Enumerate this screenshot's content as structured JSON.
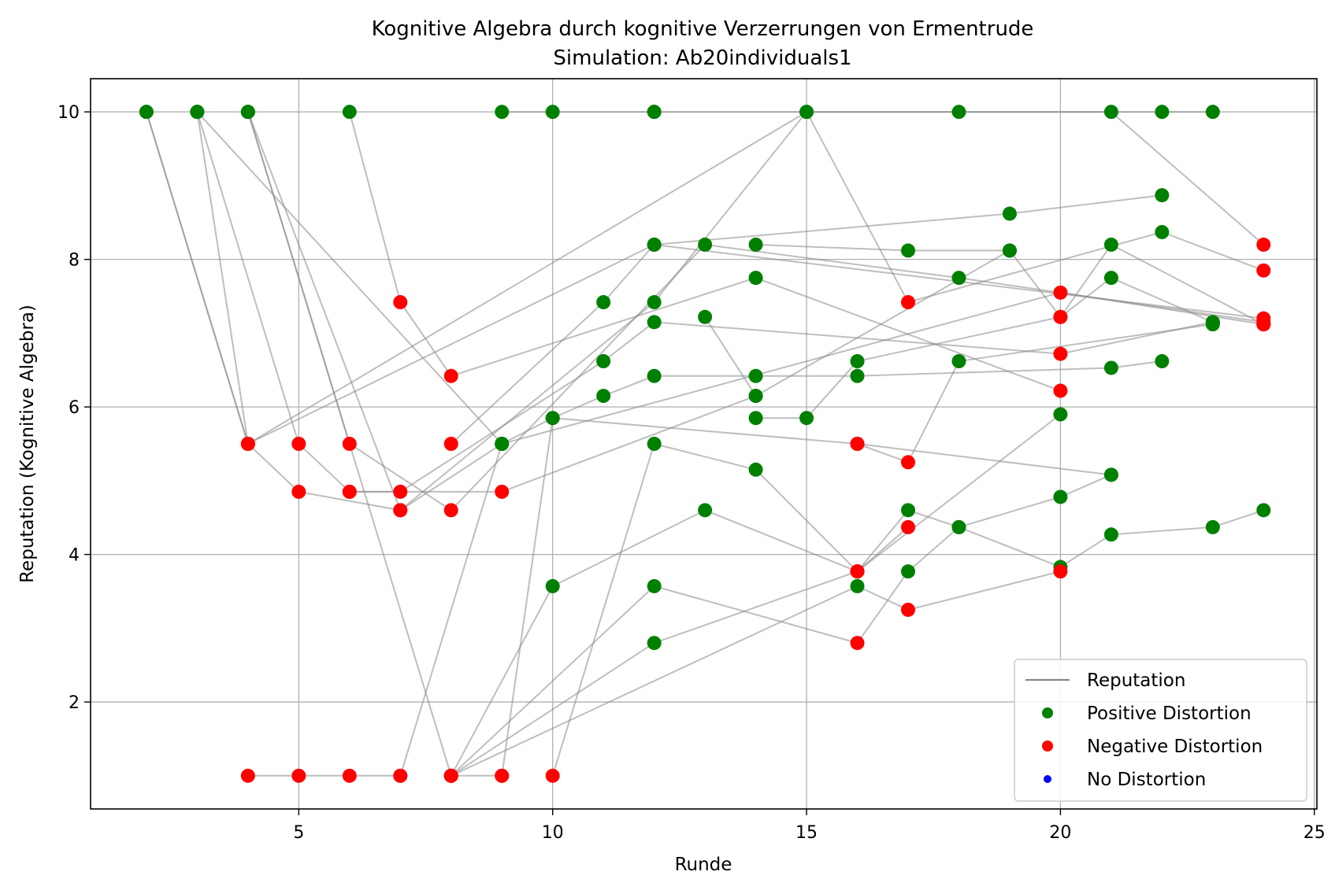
{
  "chart_data": {
    "type": "scatter",
    "title": "Kognitive Algebra durch kognitive Verzerrungen von Ermentrude",
    "subtitle": "Simulation: Ab20individuals1",
    "xlabel": "Runde",
    "ylabel": "Reputation (Kognitive Algebra)",
    "xlim": [
      0.9,
      25.05
    ],
    "ylim": [
      0.55,
      10.45
    ],
    "xticks": [
      5,
      10,
      15,
      20,
      25
    ],
    "yticks": [
      2,
      4,
      6,
      8,
      10
    ],
    "grid": true,
    "legend_position": "lower-right",
    "colors": {
      "positive": "#008000",
      "negative": "#ff0000",
      "none": "#0000ff",
      "line": "#888888",
      "grid": "#b0b0b0"
    },
    "legend": [
      {
        "label": "Reputation",
        "kind": "line"
      },
      {
        "label": "Positive Distortion",
        "kind": "positive"
      },
      {
        "label": "Negative Distortion",
        "kind": "negative"
      },
      {
        "label": "No Distortion",
        "kind": "none"
      }
    ],
    "series": [
      {
        "points": [
          [
            2,
            10
          ],
          [
            4,
            5.5
          ],
          [
            12,
            8.2
          ],
          [
            24,
            7.2
          ]
        ],
        "kinds": [
          "p",
          "n",
          "p",
          "n"
        ]
      },
      {
        "points": [
          [
            2,
            10
          ],
          [
            4,
            5.5
          ],
          [
            5,
            4.85
          ],
          [
            7,
            4.6
          ],
          [
            9,
            5.5
          ],
          [
            20,
            7.55
          ],
          [
            24,
            7.12
          ]
        ],
        "kinds": [
          "p",
          "n",
          "n",
          "n",
          "p",
          "n",
          "n"
        ]
      },
      {
        "points": [
          [
            3,
            10
          ],
          [
            4,
            5.5
          ],
          [
            15,
            10
          ],
          [
            21,
            10
          ],
          [
            24,
            8.2
          ]
        ],
        "kinds": [
          "p",
          "n",
          "p",
          "p",
          "n"
        ]
      },
      {
        "points": [
          [
            3,
            10
          ],
          [
            5,
            5.5
          ],
          [
            6,
            4.85
          ],
          [
            9,
            4.85
          ],
          [
            14,
            6.15
          ],
          [
            19,
            8.12
          ],
          [
            20,
            7.22
          ],
          [
            21,
            8.2
          ],
          [
            24,
            7.12
          ]
        ],
        "kinds": [
          "p",
          "n",
          "n",
          "n",
          "p",
          "p",
          "n",
          "p",
          "n"
        ]
      },
      {
        "points": [
          [
            3,
            10
          ],
          [
            9,
            5.5
          ],
          [
            10,
            5.85
          ],
          [
            16,
            5.5
          ],
          [
            17,
            5.25
          ],
          [
            18,
            6.62
          ],
          [
            23,
            7.12
          ]
        ],
        "kinds": [
          "p",
          "p",
          "p",
          "n",
          "n",
          "p",
          "p"
        ]
      },
      {
        "points": [
          [
            4,
            10
          ],
          [
            6,
            5.5
          ],
          [
            8,
            4.6
          ],
          [
            13,
            8.2
          ],
          [
            18,
            7.75
          ],
          [
            24,
            7.15
          ]
        ],
        "kinds": [
          "p",
          "n",
          "n",
          "p",
          "p",
          "n"
        ]
      },
      {
        "points": [
          [
            4,
            10
          ],
          [
            7,
            4.6
          ],
          [
            12,
            7.42
          ],
          [
            15,
            10
          ],
          [
            17,
            7.42
          ],
          [
            22,
            8.37
          ],
          [
            24,
            7.85
          ]
        ],
        "kinds": [
          "p",
          "n",
          "p",
          "p",
          "n",
          "p",
          "n"
        ]
      },
      {
        "points": [
          [
            4,
            10
          ],
          [
            8,
            1
          ],
          [
            9,
            1
          ]
        ],
        "kinds": [
          "p",
          "n",
          "n"
        ]
      },
      {
        "points": [
          [
            4,
            1
          ],
          [
            5,
            1
          ],
          [
            6,
            1
          ],
          [
            7,
            1
          ]
        ],
        "kinds": [
          "n",
          "n",
          "n",
          "n"
        ]
      },
      {
        "points": [
          [
            6,
            10
          ],
          [
            7,
            7.42
          ],
          [
            8,
            6.42
          ],
          [
            14,
            7.75
          ],
          [
            20,
            6.22
          ]
        ],
        "kinds": [
          "p",
          "n",
          "n",
          "p",
          "n"
        ]
      },
      {
        "points": [
          [
            6,
            4.85
          ],
          [
            7,
            4.85
          ],
          [
            11,
            6.62
          ],
          [
            12,
            7.15
          ],
          [
            20,
            6.72
          ],
          [
            23,
            7.15
          ]
        ],
        "kinds": [
          "n",
          "n",
          "p",
          "p",
          "n",
          "p"
        ]
      },
      {
        "points": [
          [
            8,
            5.5
          ],
          [
            11,
            7.42
          ],
          [
            12,
            8.2
          ],
          [
            19,
            8.62
          ],
          [
            22,
            8.87
          ]
        ],
        "kinds": [
          "n",
          "p",
          "p",
          "p",
          "p"
        ]
      },
      {
        "points": [
          [
            7,
            1
          ],
          [
            9,
            5.5
          ]
        ],
        "kinds": [
          "n",
          "p"
        ]
      },
      {
        "points": [
          [
            8,
            1
          ],
          [
            10,
            3.57
          ],
          [
            13,
            4.6
          ],
          [
            16,
            3.77
          ],
          [
            17,
            4.37
          ]
        ],
        "kinds": [
          "n",
          "p",
          "p",
          "n",
          "n"
        ]
      },
      {
        "points": [
          [
            8,
            1
          ],
          [
            12,
            3.57
          ],
          [
            16,
            2.8
          ],
          [
            17,
            3.77
          ],
          [
            18,
            4.37
          ],
          [
            20,
            4.78
          ],
          [
            21,
            5.08
          ]
        ],
        "kinds": [
          "n",
          "p",
          "n",
          "p",
          "p",
          "p",
          "p"
        ]
      },
      {
        "points": [
          [
            8,
            1
          ],
          [
            12,
            2.8
          ],
          [
            16,
            3.77
          ],
          [
            17,
            4.6
          ],
          [
            18,
            4.37
          ],
          [
            20,
            3.83
          ],
          [
            21,
            4.27
          ],
          [
            23,
            4.37
          ],
          [
            24,
            4.6
          ]
        ],
        "kinds": [
          "n",
          "p",
          "n",
          "p",
          "p",
          "p",
          "p",
          "p",
          "p"
        ]
      },
      {
        "points": [
          [
            8,
            1
          ],
          [
            16,
            3.57
          ],
          [
            17,
            3.25
          ],
          [
            20,
            3.77
          ]
        ],
        "kinds": [
          "n",
          "p",
          "n",
          "n"
        ]
      },
      {
        "points": [
          [
            9,
            1
          ],
          [
            10,
            5.85
          ],
          [
            11,
            6.15
          ],
          [
            12,
            6.42
          ],
          [
            14,
            6.42
          ],
          [
            16,
            6.42
          ],
          [
            21,
            6.53
          ],
          [
            22,
            6.62
          ]
        ],
        "kinds": [
          "n",
          "p",
          "p",
          "p",
          "p",
          "p",
          "p",
          "p"
        ]
      },
      {
        "points": [
          [
            10,
            1
          ],
          [
            12,
            5.5
          ],
          [
            14,
            5.15
          ],
          [
            16,
            3.77
          ],
          [
            20,
            5.9
          ]
        ],
        "kinds": [
          "n",
          "p",
          "p",
          "n",
          "p"
        ]
      },
      {
        "points": [
          [
            12,
            10
          ],
          [
            18,
            10
          ],
          [
            22,
            10
          ],
          [
            23,
            10
          ]
        ],
        "kinds": [
          "p",
          "p",
          "p",
          "p"
        ]
      },
      {
        "points": [
          [
            9,
            10
          ],
          [
            10,
            10
          ],
          [
            12,
            10
          ]
        ],
        "kinds": [
          "p",
          "p",
          "p"
        ]
      },
      {
        "points": [
          [
            14,
            5.85
          ],
          [
            15,
            5.85
          ],
          [
            16,
            6.62
          ],
          [
            20,
            7.22
          ],
          [
            21,
            7.75
          ],
          [
            23,
            7.15
          ]
        ],
        "kinds": [
          "p",
          "p",
          "p",
          "n",
          "p",
          "p"
        ]
      },
      {
        "points": [
          [
            14,
            8.2
          ],
          [
            17,
            8.12
          ],
          [
            19,
            8.12
          ]
        ],
        "kinds": [
          "p",
          "p",
          "p"
        ]
      },
      {
        "points": [
          [
            13,
            7.22
          ],
          [
            14,
            6.15
          ]
        ],
        "kinds": [
          "p",
          "p"
        ]
      },
      {
        "points": [
          [
            16,
            5.5
          ],
          [
            21,
            5.08
          ]
        ],
        "kinds": [
          "n",
          "p"
        ]
      }
    ]
  }
}
